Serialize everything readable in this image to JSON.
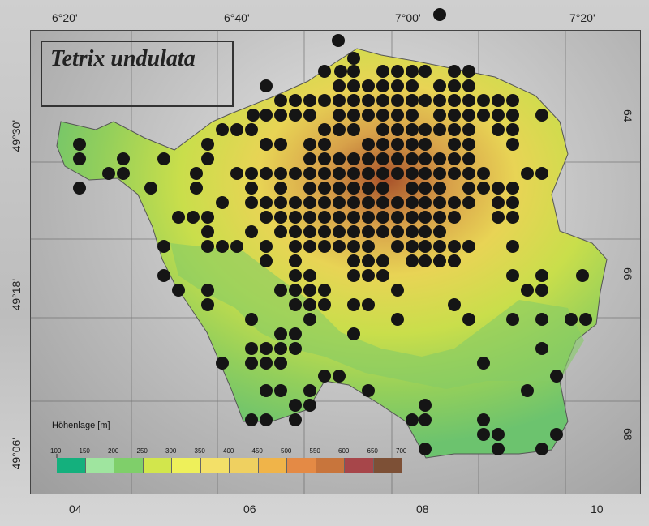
{
  "map_title": "Tetrix undulata",
  "longitude_labels": [
    "6°20'",
    "6°40'",
    "7°00'",
    "7°20'"
  ],
  "latitude_labels": [
    "49°30'",
    "49°18'",
    "49°06'"
  ],
  "grid_x_labels": [
    "04",
    "06",
    "08",
    "10"
  ],
  "grid_y_labels": [
    "64",
    "66",
    "68"
  ],
  "legend": {
    "title": "Höhenlage [m]",
    "ticks": [
      "100",
      "150",
      "200",
      "250",
      "300",
      "350",
      "400",
      "450",
      "500",
      "550",
      "600",
      "650",
      "700"
    ],
    "colors": [
      "#14b07d",
      "#9fe59f",
      "#7fcf6a",
      "#d2e64c",
      "#eef05a",
      "#f3e068",
      "#efd060",
      "#f0b449",
      "#e48a45",
      "#c8753c",
      "#a7464a",
      "#7d5036",
      "#4a2e44"
    ]
  },
  "colors": {
    "occurrence_dot": "#151515",
    "lowland": "#8cce5a",
    "highland": "#b5541f"
  }
}
